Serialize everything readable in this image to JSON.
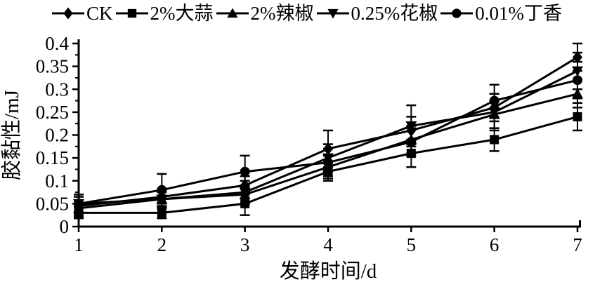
{
  "figure": {
    "background": "#ffffff",
    "ink_color": "#000000"
  },
  "chart_data": {
    "type": "line",
    "title": "",
    "xlabel": "发酵时间/d",
    "ylabel": "胶黏性/mJ",
    "x": [
      1,
      2,
      3,
      4,
      5,
      6,
      7
    ],
    "xticks": [
      "1",
      "2",
      "3",
      "4",
      "5",
      "6",
      "7"
    ],
    "yticks": [
      "0",
      "0.05",
      "0.1",
      "0.15",
      "0.2",
      "0.25",
      "0.3",
      "0.35",
      "0.4"
    ],
    "ytick_values": [
      0,
      0.05,
      0.1,
      0.15,
      0.2,
      0.25,
      0.3,
      0.35,
      0.4
    ],
    "xlim": [
      1,
      7
    ],
    "ylim": [
      0,
      0.4
    ],
    "grid": false,
    "legend_position": "top",
    "error_bars": true,
    "series": [
      {
        "name": "CK",
        "marker": "diamond",
        "values": [
          0.045,
          0.065,
          0.09,
          0.17,
          0.21,
          0.26,
          0.37
        ],
        "errors": [
          0.02,
          0.015,
          0.02,
          0.04,
          0.03,
          0.03,
          0.03
        ]
      },
      {
        "name": "2%大蒜",
        "marker": "square",
        "values": [
          0.03,
          0.03,
          0.05,
          0.12,
          0.16,
          0.19,
          0.24
        ],
        "errors": [
          0.012,
          0.012,
          0.025,
          0.02,
          0.03,
          0.025,
          0.03
        ]
      },
      {
        "name": "2%辣椒",
        "marker": "triangle-up",
        "values": [
          0.04,
          0.06,
          0.07,
          0.13,
          0.19,
          0.245,
          0.29
        ],
        "errors": [
          0.018,
          0.015,
          0.02,
          0.025,
          0.03,
          0.03,
          0.03
        ]
      },
      {
        "name": "0.25%花椒",
        "marker": "triangle-down",
        "values": [
          0.05,
          0.06,
          0.075,
          0.15,
          0.22,
          0.25,
          0.34
        ],
        "errors": [
          0.02,
          0.02,
          0.025,
          0.03,
          0.045,
          0.04,
          0.04
        ]
      },
      {
        "name": "0.01%丁香",
        "marker": "circle",
        "values": [
          0.05,
          0.08,
          0.12,
          0.14,
          0.185,
          0.275,
          0.32
        ],
        "errors": [
          0.02,
          0.035,
          0.035,
          0.03,
          0.03,
          0.035,
          0.04
        ]
      }
    ]
  }
}
